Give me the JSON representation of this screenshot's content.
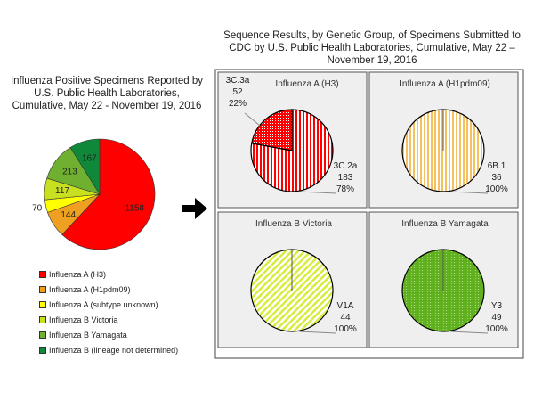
{
  "chart_data": [
    {
      "type": "pie",
      "title": "Influenza Positive Specimens Reported by U.S. Public Health Laboratories, Cumulative, May 22 - November 19, 2016",
      "categories": [
        "Influenza A (H3)",
        "Influenza A (H1pdm09)",
        "Influenza A (subtype unknown)",
        "Influenza B Victoria",
        "Influenza B Yamagata",
        "Influenza B (lineage not determined)"
      ],
      "values": [
        1158,
        144,
        70,
        117,
        213,
        167
      ],
      "colors": [
        "#ff0000",
        "#f0a020",
        "#ffff00",
        "#c8e020",
        "#70b030",
        "#10883a"
      ],
      "legend": "bottom-left"
    },
    {
      "type": "pie",
      "title": "Sequence Results, by Genetic Group, of Specimens Submitted to CDC by U.S. Public Health Laboratories, Cumulative, May 22 – November 19, 2016",
      "panels": [
        {
          "title": "Influenza A (H3)",
          "slices": [
            {
              "label": "3C.2a",
              "value": 183,
              "pct": "78%"
            },
            {
              "label": "3C.3a",
              "value": 52,
              "pct": "22%"
            }
          ],
          "color": "#ff0000"
        },
        {
          "title": "Influenza A (H1pdm09)",
          "slices": [
            {
              "label": "6B.1",
              "value": 36,
              "pct": "100%"
            }
          ],
          "color": "#f5c060"
        },
        {
          "title": "Influenza B Victoria",
          "slices": [
            {
              "label": "V1A",
              "value": 44,
              "pct": "100%"
            }
          ],
          "color": "#d8ec40"
        },
        {
          "title": "Influenza B Yamagata",
          "slices": [
            {
              "label": "Y3",
              "value": 49,
              "pct": "100%"
            }
          ],
          "color": "#60b020"
        }
      ]
    }
  ]
}
